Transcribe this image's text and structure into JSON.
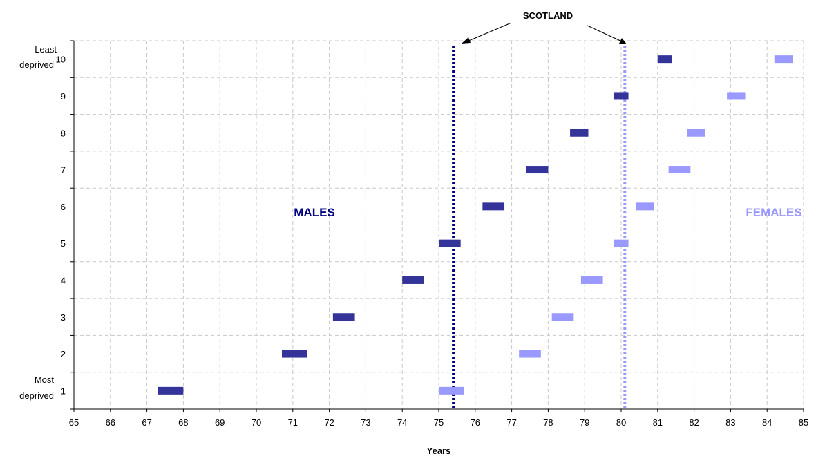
{
  "chart_data": {
    "type": "scatter",
    "xlabel": "Years",
    "xlim": [
      65,
      85
    ],
    "x_ticks": [
      "65",
      "66",
      "67",
      "68",
      "69",
      "70",
      "71",
      "72",
      "73",
      "74",
      "75",
      "76",
      "77",
      "78",
      "79",
      "80",
      "81",
      "82",
      "83",
      "84",
      "85"
    ],
    "y_categories": [
      "1",
      "2",
      "3",
      "4",
      "5",
      "6",
      "7",
      "8",
      "9",
      "10"
    ],
    "y_extra_labels": {
      "top": [
        "Least",
        "deprived"
      ],
      "bottom": [
        "Most",
        "deprived"
      ]
    },
    "grid": true,
    "series": [
      {
        "name": "MALES",
        "color": "#333399",
        "values": [
          [
            67.3,
            68.0
          ],
          [
            70.7,
            71.4
          ],
          [
            72.1,
            72.7
          ],
          [
            74.0,
            74.6
          ],
          [
            75.0,
            75.6
          ],
          [
            76.2,
            76.8
          ],
          [
            77.4,
            78.0
          ],
          [
            78.6,
            79.1
          ],
          [
            79.8,
            80.2
          ],
          [
            81.0,
            81.4
          ]
        ]
      },
      {
        "name": "FEMALES",
        "color": "#9999ff",
        "values": [
          [
            75.0,
            75.7
          ],
          [
            77.2,
            77.8
          ],
          [
            78.1,
            78.7
          ],
          [
            78.9,
            79.5
          ],
          [
            79.8,
            80.2
          ],
          [
            80.4,
            80.9
          ],
          [
            81.3,
            81.9
          ],
          [
            81.8,
            82.3
          ],
          [
            82.9,
            83.4
          ],
          [
            84.2,
            84.7
          ]
        ]
      }
    ],
    "reference_lines": [
      {
        "label": "SCOTLAND",
        "series": "MALES",
        "x": 75.4,
        "color": "#000080"
      },
      {
        "label": "SCOTLAND",
        "series": "FEMALES",
        "x": 80.1,
        "color": "#9999ff"
      }
    ],
    "annotation": "SCOTLAND"
  }
}
